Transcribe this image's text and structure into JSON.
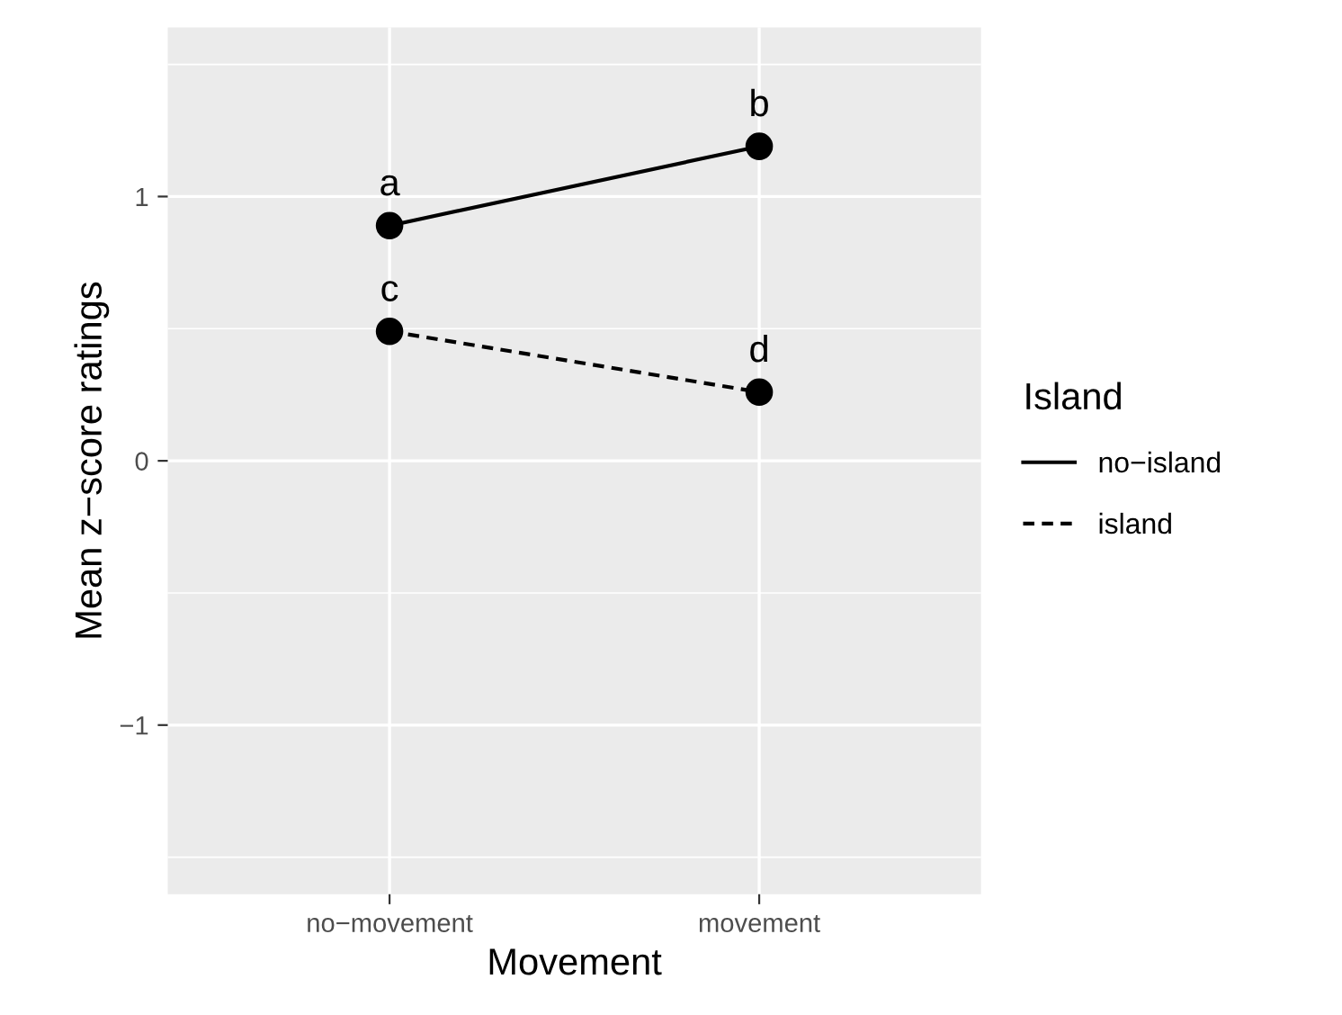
{
  "chart_data": {
    "type": "line",
    "xlabel": "Movement",
    "ylabel": "Mean z−score ratings",
    "legend_title": "Island",
    "categories": [
      "no−movement",
      "movement"
    ],
    "series": [
      {
        "name": "no−island",
        "color": "#000000",
        "values": [
          0.89,
          1.19
        ],
        "line_style": "solid"
      },
      {
        "name": "island",
        "color": "#000000",
        "values": [
          0.49,
          0.26
        ],
        "line_style": "dashed"
      }
    ],
    "annotations": [
      {
        "text": "a",
        "x": "no−movement",
        "y": 0.89
      },
      {
        "text": "b",
        "x": "movement",
        "y": 1.19
      },
      {
        "text": "c",
        "x": "no−movement",
        "y": 0.49
      },
      {
        "text": "d",
        "x": "movement",
        "y": 0.26
      }
    ],
    "ylim": [
      -1.64,
      1.64
    ],
    "yticks": [
      {
        "value": -1,
        "label": "−1"
      },
      0,
      1
    ],
    "marker": "circle",
    "grid": true,
    "legend": "right"
  }
}
